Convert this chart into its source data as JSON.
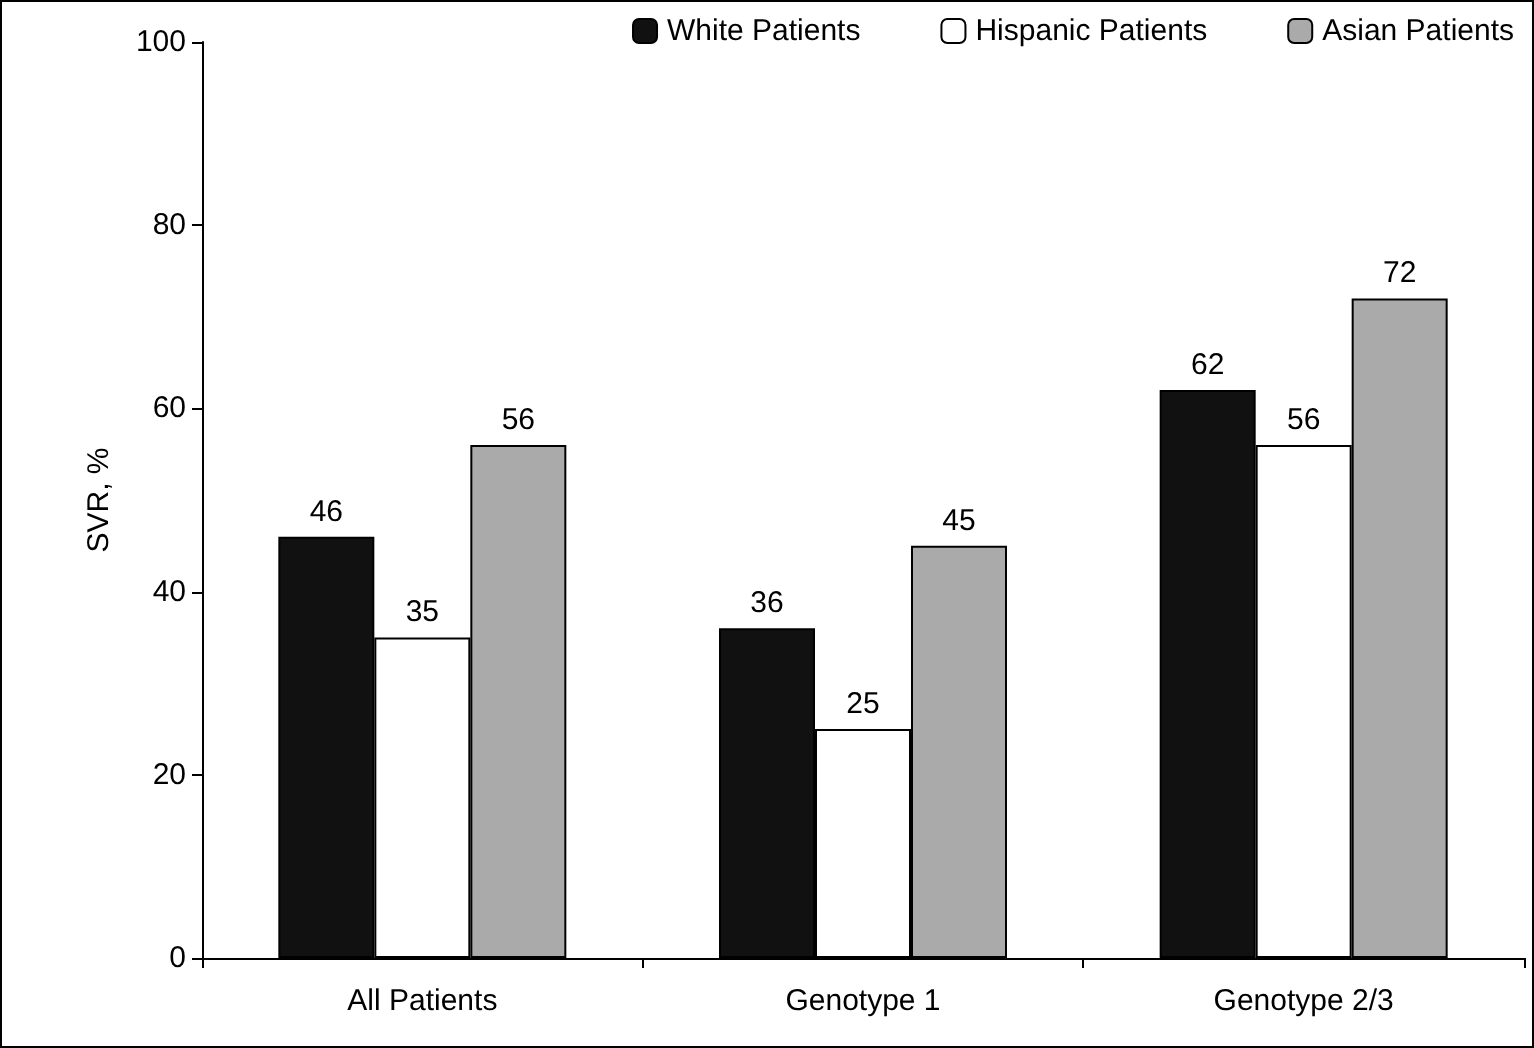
{
  "chart_data": {
    "type": "bar",
    "ylabel": "SVR, %",
    "categories": [
      "All Patients",
      "Genotype 1",
      "Genotype 2/3"
    ],
    "series": [
      {
        "name": "White Patients",
        "color": "#111111",
        "values": [
          46,
          36,
          62
        ]
      },
      {
        "name": "Hispanic Patients",
        "color": "#ffffff",
        "values": [
          35,
          25,
          56
        ]
      },
      {
        "name": "Asian Patients",
        "color": "#aaaaaa",
        "values": [
          56,
          45,
          72
        ]
      }
    ],
    "ylim": [
      0,
      100
    ],
    "yticks": [
      0,
      20,
      40,
      60,
      80,
      100
    ],
    "grid": false,
    "legend": "top",
    "data_labels": true
  }
}
